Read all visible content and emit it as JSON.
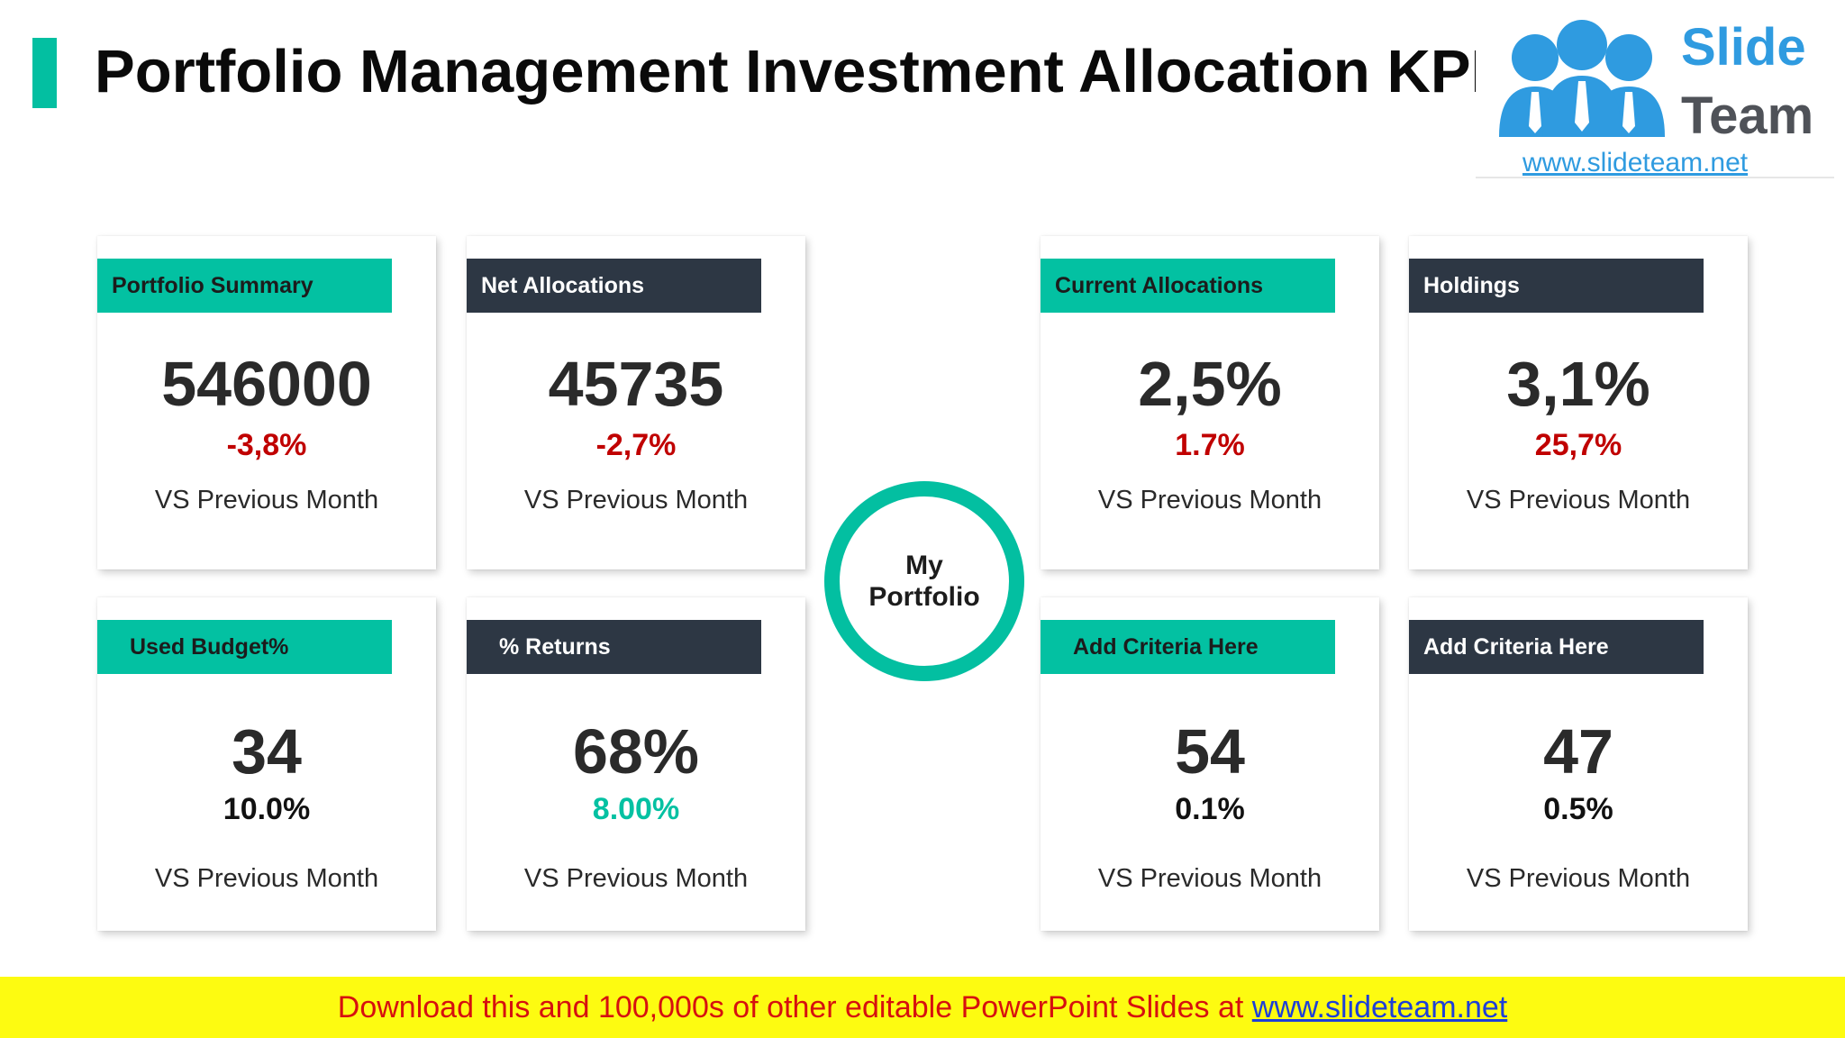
{
  "title": "Portfolio Management Investment Allocation KPIs",
  "logo": {
    "word1": "Slide",
    "word2": "Team",
    "url": "www.slideteam.net",
    "people_color": "#2f9be0"
  },
  "colors": {
    "teal": "#03c1a2",
    "dark": "#2d3744",
    "negative": "#c00000",
    "positive": "#03c1a2",
    "neutral": "#111111",
    "footer_bg": "#fdfb11",
    "footer_text": "#d6100f"
  },
  "center": {
    "line1": "My",
    "line2": "Portfolio"
  },
  "cards": [
    {
      "header": "Portfolio Summary",
      "value": "546000",
      "change": "-3,8%",
      "label": "VS Previous Month"
    },
    {
      "header": "Net Allocations",
      "value": "45735",
      "change": "-2,7%",
      "label": "VS Previous Month"
    },
    {
      "header": "Current Allocations",
      "value": "2,5%",
      "change": "1.7%",
      "label": "VS Previous Month"
    },
    {
      "header": "Holdings",
      "value": "3,1%",
      "change": "25,7%",
      "label": "VS Previous Month"
    },
    {
      "header": "Used Budget%",
      "value": "34",
      "change": "10.0%",
      "label": "VS Previous Month"
    },
    {
      "header": "% Returns",
      "value": "68%",
      "change": "8.00%",
      "label": "VS Previous Month"
    },
    {
      "header": "Add Criteria Here",
      "value": "54",
      "change": "0.1%",
      "label": "VS Previous Month"
    },
    {
      "header": "Add Criteria Here",
      "value": "47",
      "change": "0.5%",
      "label": "VS Previous Month"
    }
  ],
  "footer": {
    "text": "Download this and 100,000s of other editable PowerPoint Slides at ",
    "link": "www.slideteam.net"
  }
}
